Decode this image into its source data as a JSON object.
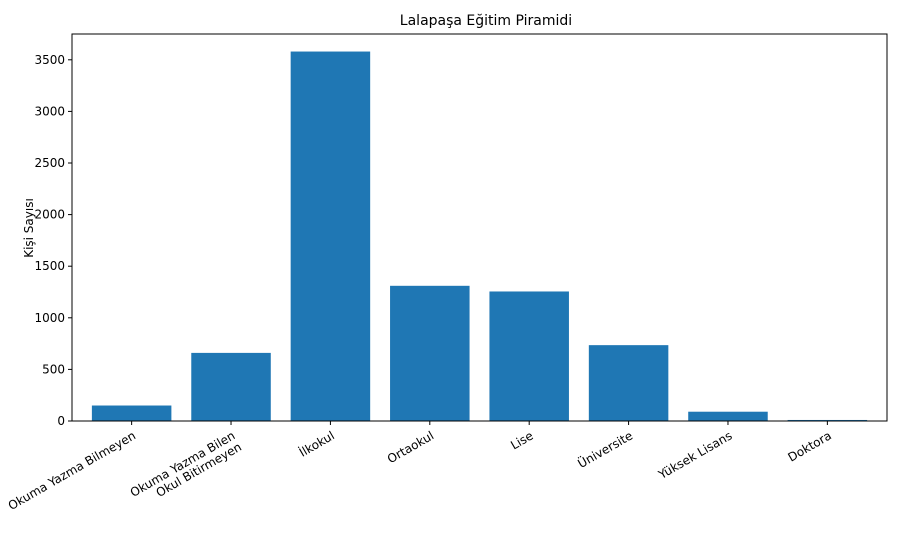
{
  "chart_data": {
    "type": "bar",
    "title": "Lalapaşa Eğitim Piramidi",
    "xlabel": "",
    "ylabel": "Kişi Sayısı",
    "categories": [
      "Okuma Yazma Bilmeyen",
      "Okuma Yazma Bilen\nOkul Bitirmeyen",
      "İlkokul",
      "Ortaokul",
      "Lise",
      "Üniversite",
      "Yüksek Lisans",
      "Doktora"
    ],
    "values": [
      150,
      660,
      3580,
      1310,
      1255,
      735,
      90,
      10
    ],
    "ylim": [
      0,
      3750
    ],
    "yticks": [
      0,
      500,
      1000,
      1500,
      2000,
      2500,
      3000,
      3500
    ],
    "bar_color": "#1f77b4",
    "grid": false,
    "legend": "none"
  }
}
